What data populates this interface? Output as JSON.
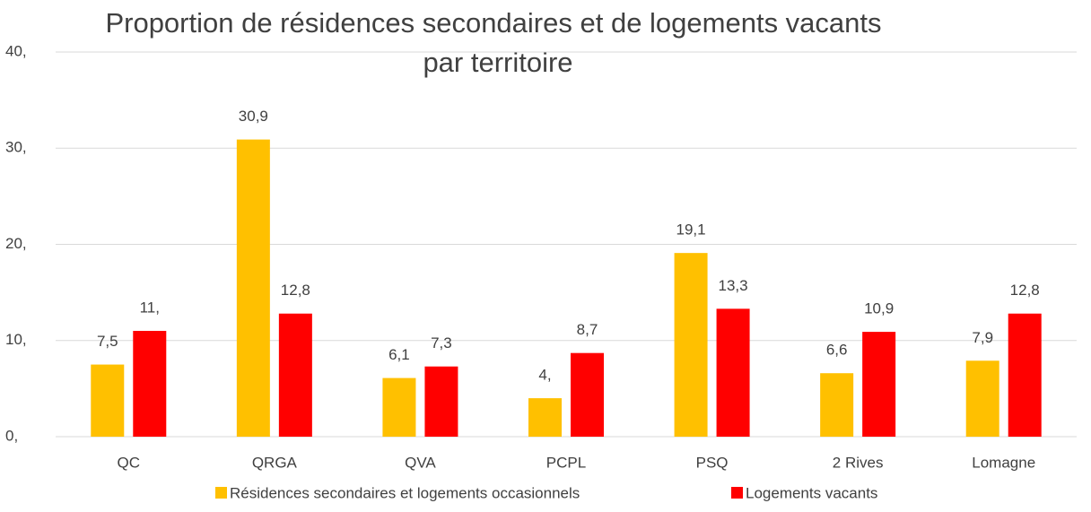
{
  "chart_data": {
    "type": "bar",
    "title": [
      "Proportion de résidences secondaires et de logements vacants",
      "par territoire"
    ],
    "categories": [
      "QC",
      "QRGA",
      "QVA",
      "PCPL",
      "PSQ",
      "2 Rives",
      "Lomagne"
    ],
    "series": [
      {
        "name": "Résidences secondaires et logements occasionnels",
        "color": "#FFC000",
        "values": [
          7.5,
          30.9,
          6.1,
          4,
          19.1,
          6.6,
          7.9
        ],
        "value_labels": [
          "7,5",
          "30,9",
          "6,1",
          "4,",
          "19,1",
          "6,6",
          "7,9"
        ]
      },
      {
        "name": "Logements vacants",
        "color": "#FF0000",
        "values": [
          11,
          12.8,
          7.3,
          8.7,
          13.3,
          10.9,
          12.8
        ],
        "value_labels": [
          "11,",
          "12,8",
          "7,3",
          "8,7",
          "13,3",
          "10,9",
          "12,8"
        ]
      }
    ],
    "ylim": [
      0,
      40
    ],
    "yticks": [
      {
        "value": 0,
        "label": "0,"
      },
      {
        "value": 10,
        "label": "10,"
      },
      {
        "value": 20,
        "label": "20,"
      },
      {
        "value": 30,
        "label": "30,"
      },
      {
        "value": 40,
        "label": "40,"
      }
    ],
    "grid": true,
    "legend": "bottom"
  }
}
